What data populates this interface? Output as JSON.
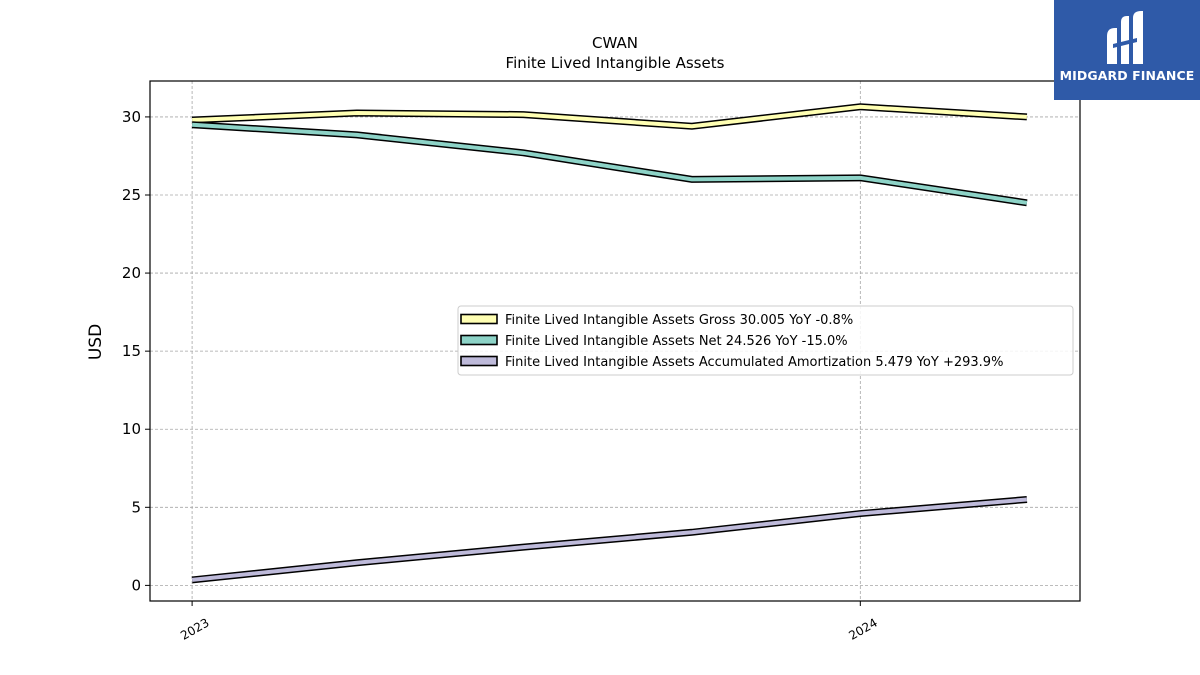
{
  "brand": {
    "name": "MIDGARD FINANCE",
    "bg_color": "#2f5aa8"
  },
  "chart_data": {
    "type": "line",
    "title": "CWAN",
    "subtitle": "Finite Lived Intangible Assets",
    "xlabel": "",
    "ylabel": "USD",
    "ylim": [
      -1.0,
      32.3
    ],
    "yticks": [
      0,
      5,
      10,
      15,
      20,
      25,
      30
    ],
    "xlim": [
      "2022-12-09",
      "2024-04-30"
    ],
    "xticks": [
      {
        "date": "2023-01-01",
        "label": "2023"
      },
      {
        "date": "2024-01-01",
        "label": "2024"
      }
    ],
    "x": [
      "2023-01-01",
      "2023-04-01",
      "2023-07-01",
      "2023-10-01",
      "2024-01-01",
      "2024-04-01"
    ],
    "grid": true,
    "legend_position": "center-right",
    "series": [
      {
        "name": "Finite Lived Intangible Assets Gross",
        "legend": "Finite Lived Intangible Assets Gross  30.005 YoY -0.8%",
        "color": "#ffffb3",
        "values": [
          29.8,
          30.25,
          30.15,
          29.4,
          30.65,
          30.0
        ]
      },
      {
        "name": "Finite Lived Intangible Assets Net",
        "legend": "Finite Lived Intangible Assets Net  24.526 YoY -15.0%",
        "color": "#8dd3c7",
        "values": [
          29.5,
          28.85,
          27.7,
          26.0,
          26.1,
          24.5
        ]
      },
      {
        "name": "Finite Lived Intangible Assets Accumulated Amortization",
        "legend": "Finite Lived Intangible Assets Accumulated Amortization  5.479 YoY +293.9%",
        "color": "#bebada",
        "values": [
          0.35,
          1.45,
          2.45,
          3.4,
          4.6,
          5.5
        ]
      }
    ]
  }
}
